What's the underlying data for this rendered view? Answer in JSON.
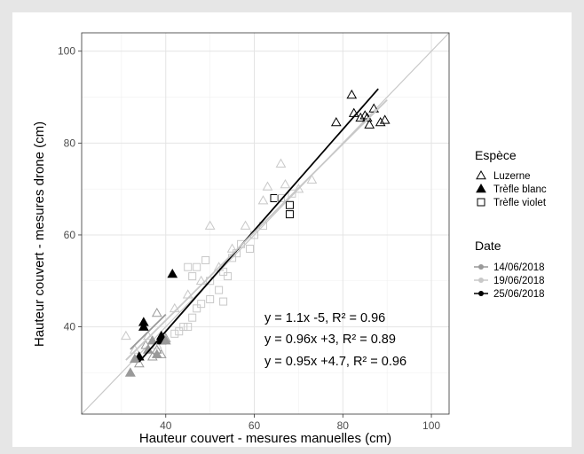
{
  "chart_data": {
    "type": "scatter",
    "xlabel": "Hauteur couvert - mesures manuelles (cm)",
    "ylabel": "Hauteur couvert - mesures drone (cm)",
    "xlim": [
      21,
      104
    ],
    "ylim": [
      21,
      104
    ],
    "x_ticks": [
      40,
      60,
      80,
      100
    ],
    "y_ticks": [
      40,
      60,
      80,
      100
    ],
    "grid": true,
    "identity_line": true,
    "legend_placement": "right",
    "legend_shape": {
      "title": "Espèce",
      "items": [
        {
          "label": "Luzerne",
          "marker": "triangle-open"
        },
        {
          "label": "Trèfle blanc",
          "marker": "triangle-filled"
        },
        {
          "label": "Trèfle violet",
          "marker": "square-open"
        }
      ]
    },
    "legend_color": {
      "title": "Date",
      "items": [
        {
          "label": "14/06/2018",
          "color": "#999999"
        },
        {
          "label": "19/06/2018",
          "color": "#c8c8c8"
        },
        {
          "label": "25/06/2018",
          "color": "#000000"
        }
      ]
    },
    "annotations": [
      "y = 1.1x -5, R² = 0.96",
      "y = 0.96x +3, R² = 0.89",
      "y = 0.95x +4.7, R² = 0.96"
    ],
    "regression_lines": [
      {
        "date": "25/06/2018",
        "color": "#000000",
        "slope": 1.1,
        "intercept": -5,
        "x_range": [
          34,
          88
        ]
      },
      {
        "date": "19/06/2018",
        "color": "#c8c8c8",
        "slope": 0.96,
        "intercept": 3,
        "x_range": [
          31,
          90
        ]
      },
      {
        "date": "14/06/2018",
        "color": "#999999",
        "slope": 0.95,
        "intercept": 4.7,
        "x_range": [
          32,
          40
        ]
      }
    ],
    "series": [
      {
        "name": "Luzerne",
        "points": [
          {
            "x": 82,
            "y": 90.5,
            "date": "25/06/2018"
          },
          {
            "x": 78.5,
            "y": 84.5,
            "date": "25/06/2018"
          },
          {
            "x": 82.5,
            "y": 86.5,
            "date": "25/06/2018"
          },
          {
            "x": 84,
            "y": 85.5,
            "date": "25/06/2018"
          },
          {
            "x": 85,
            "y": 86,
            "date": "25/06/2018"
          },
          {
            "x": 85.5,
            "y": 85.5,
            "date": "25/06/2018"
          },
          {
            "x": 86,
            "y": 84,
            "date": "25/06/2018"
          },
          {
            "x": 87,
            "y": 87.5,
            "date": "25/06/2018"
          },
          {
            "x": 88.5,
            "y": 84.5,
            "date": "25/06/2018"
          },
          {
            "x": 89.5,
            "y": 85,
            "date": "25/06/2018"
          },
          {
            "x": 66,
            "y": 75.5,
            "date": "19/06/2018"
          },
          {
            "x": 63,
            "y": 70.5,
            "date": "19/06/2018"
          },
          {
            "x": 67,
            "y": 71,
            "date": "19/06/2018"
          },
          {
            "x": 70,
            "y": 70,
            "date": "19/06/2018"
          },
          {
            "x": 73,
            "y": 72,
            "date": "19/06/2018"
          },
          {
            "x": 62,
            "y": 67.5,
            "date": "19/06/2018"
          },
          {
            "x": 58,
            "y": 62,
            "date": "19/06/2018"
          },
          {
            "x": 55,
            "y": 57,
            "date": "19/06/2018"
          },
          {
            "x": 50,
            "y": 62,
            "date": "19/06/2018"
          },
          {
            "x": 52,
            "y": 53,
            "date": "19/06/2018"
          },
          {
            "x": 48,
            "y": 50,
            "date": "19/06/2018"
          },
          {
            "x": 45,
            "y": 47,
            "date": "19/06/2018"
          },
          {
            "x": 42,
            "y": 44,
            "date": "19/06/2018"
          },
          {
            "x": 31,
            "y": 38,
            "date": "19/06/2018"
          },
          {
            "x": 33,
            "y": 35,
            "date": "19/06/2018"
          },
          {
            "x": 36,
            "y": 38,
            "date": "19/06/2018"
          },
          {
            "x": 38,
            "y": 36,
            "date": "19/06/2018"
          },
          {
            "x": 40,
            "y": 37,
            "date": "19/06/2018"
          },
          {
            "x": 32,
            "y": 30,
            "date": "14/06/2018"
          },
          {
            "x": 34,
            "y": 32,
            "date": "14/06/2018"
          },
          {
            "x": 37,
            "y": 33.5,
            "date": "14/06/2018"
          },
          {
            "x": 38,
            "y": 35,
            "date": "14/06/2018"
          },
          {
            "x": 39,
            "y": 34,
            "date": "14/06/2018"
          },
          {
            "x": 40,
            "y": 37.5,
            "date": "14/06/2018"
          },
          {
            "x": 38,
            "y": 43,
            "date": "14/06/2018"
          },
          {
            "x": 35.5,
            "y": 36,
            "date": "14/06/2018"
          }
        ]
      },
      {
        "name": "Trèfle blanc",
        "points": [
          {
            "x": 41.5,
            "y": 51.5,
            "date": "25/06/2018"
          },
          {
            "x": 35,
            "y": 40,
            "date": "25/06/2018"
          },
          {
            "x": 35,
            "y": 41,
            "date": "25/06/2018"
          },
          {
            "x": 39,
            "y": 38,
            "date": "25/06/2018"
          },
          {
            "x": 39,
            "y": 37,
            "date": "25/06/2018"
          },
          {
            "x": 34,
            "y": 33.5,
            "date": "25/06/2018"
          },
          {
            "x": 32,
            "y": 30,
            "date": "14/06/2018"
          },
          {
            "x": 33,
            "y": 33,
            "date": "14/06/2018"
          },
          {
            "x": 36,
            "y": 35,
            "date": "14/06/2018"
          },
          {
            "x": 38,
            "y": 34,
            "date": "14/06/2018"
          },
          {
            "x": 40,
            "y": 37,
            "date": "14/06/2018"
          },
          {
            "x": 37,
            "y": 37,
            "date": "14/06/2018"
          }
        ]
      },
      {
        "name": "Trèfle violet",
        "points": [
          {
            "x": 68,
            "y": 64.5,
            "date": "25/06/2018"
          },
          {
            "x": 68,
            "y": 66.5,
            "date": "25/06/2018"
          },
          {
            "x": 64.5,
            "y": 68,
            "date": "25/06/2018"
          },
          {
            "x": 68.5,
            "y": 69,
            "date": "19/06/2018"
          },
          {
            "x": 66,
            "y": 68,
            "date": "19/06/2018"
          },
          {
            "x": 62,
            "y": 62,
            "date": "19/06/2018"
          },
          {
            "x": 60,
            "y": 60,
            "date": "19/06/2018"
          },
          {
            "x": 57,
            "y": 58,
            "date": "19/06/2018"
          },
          {
            "x": 55,
            "y": 55,
            "date": "19/06/2018"
          },
          {
            "x": 54,
            "y": 51,
            "date": "19/06/2018"
          },
          {
            "x": 53,
            "y": 52,
            "date": "19/06/2018"
          },
          {
            "x": 50,
            "y": 50,
            "date": "19/06/2018"
          },
          {
            "x": 49,
            "y": 54.5,
            "date": "19/06/2018"
          },
          {
            "x": 47,
            "y": 53,
            "date": "19/06/2018"
          },
          {
            "x": 46,
            "y": 51,
            "date": "19/06/2018"
          },
          {
            "x": 45,
            "y": 53,
            "date": "19/06/2018"
          },
          {
            "x": 52,
            "y": 48,
            "date": "19/06/2018"
          },
          {
            "x": 50,
            "y": 46,
            "date": "19/06/2018"
          },
          {
            "x": 48,
            "y": 45,
            "date": "19/06/2018"
          },
          {
            "x": 47,
            "y": 44,
            "date": "19/06/2018"
          },
          {
            "x": 46,
            "y": 42,
            "date": "19/06/2018"
          },
          {
            "x": 45,
            "y": 40,
            "date": "19/06/2018"
          },
          {
            "x": 44,
            "y": 40,
            "date": "19/06/2018"
          },
          {
            "x": 43,
            "y": 39,
            "date": "19/06/2018"
          },
          {
            "x": 42,
            "y": 38.5,
            "date": "19/06/2018"
          },
          {
            "x": 53,
            "y": 45.5,
            "date": "19/06/2018"
          },
          {
            "x": 56,
            "y": 56,
            "date": "19/06/2018"
          },
          {
            "x": 59,
            "y": 57,
            "date": "19/06/2018"
          }
        ]
      }
    ]
  }
}
